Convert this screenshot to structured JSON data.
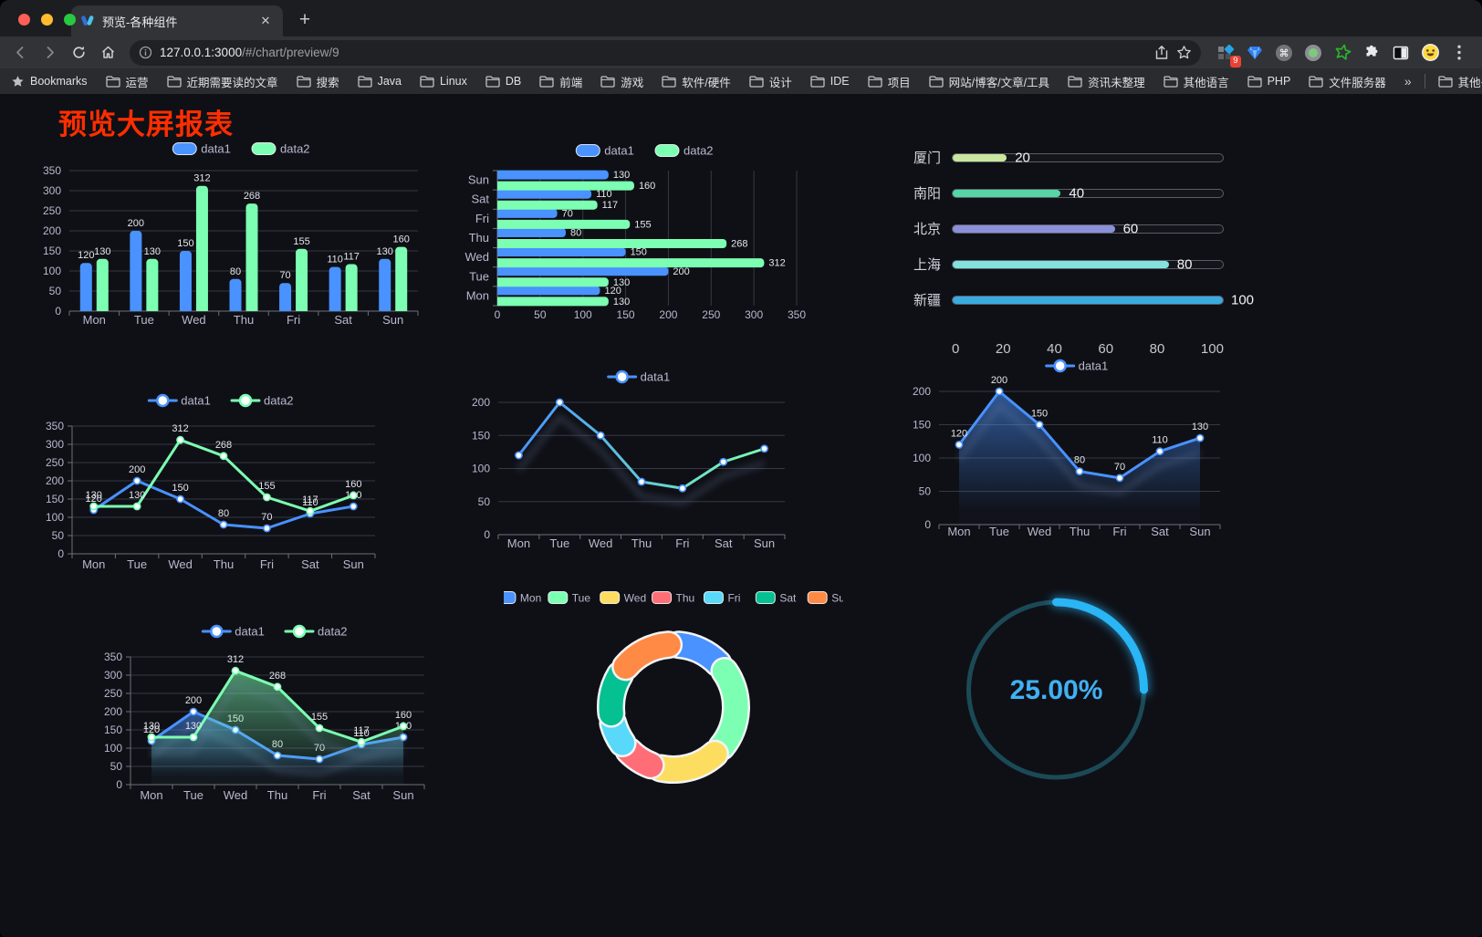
{
  "browser": {
    "tab_title": "预览-各种组件",
    "url_host": "127.0.0.1:3000",
    "url_path": "/#/chart/preview/9",
    "bookmarks_label": "Bookmarks",
    "bookmarks": [
      "运营",
      "近期需要读的文章",
      "搜索",
      "Java",
      "Linux",
      "DB",
      "前端",
      "游戏",
      "软件/硬件",
      "设计",
      "IDE",
      "项目",
      "网站/博客/文章/工具",
      "资讯未整理",
      "其他语言",
      "PHP",
      "文件服务器"
    ],
    "overflow_chevron": "»",
    "other_bookmarks": "其他书签",
    "extension_badge": "9",
    "new_tab_glyph": "+",
    "close_glyph": "✕"
  },
  "page": {
    "title": "预览大屏报表",
    "title_color": "#ff2e00"
  },
  "palette": {
    "data1": "#4992ff",
    "data2": "#7cffb2",
    "axis_label": "#b9b8ce",
    "grid": "#363744",
    "axis_line": "#6e7079",
    "value_label": "#e4e6ea"
  },
  "chart_data": [
    {
      "id": "bar-grouped",
      "type": "bar",
      "categories": [
        "Mon",
        "Tue",
        "Wed",
        "Thu",
        "Fri",
        "Sat",
        "Sun"
      ],
      "series": [
        {
          "name": "data1",
          "color": "#4992ff",
          "values": [
            120,
            200,
            150,
            80,
            70,
            110,
            130
          ]
        },
        {
          "name": "data2",
          "color": "#7cffb2",
          "values": [
            130,
            130,
            312,
            268,
            155,
            117,
            160
          ]
        }
      ],
      "ylim": [
        0,
        350
      ],
      "ytick": 50,
      "legend_pos": "top",
      "grid": true,
      "value_labels": true
    },
    {
      "id": "hbar-grouped",
      "type": "hbar",
      "categories": [
        "Mon",
        "Tue",
        "Wed",
        "Thu",
        "Fri",
        "Sat",
        "Sun"
      ],
      "series": [
        {
          "name": "data1",
          "color": "#4992ff",
          "values": [
            120,
            200,
            150,
            80,
            70,
            110,
            130
          ]
        },
        {
          "name": "data2",
          "color": "#7cffb2",
          "values": [
            130,
            130,
            312,
            268,
            155,
            117,
            160
          ]
        }
      ],
      "xlim": [
        0,
        350
      ],
      "xtick": 50,
      "legend_pos": "top",
      "grid": true,
      "value_labels": true
    },
    {
      "id": "capsule-progress",
      "type": "capsule",
      "xlim": [
        0,
        100
      ],
      "ticks": [
        0,
        20,
        40,
        60,
        80,
        100
      ],
      "rows": [
        {
          "label": "厦门",
          "value": 20,
          "color": "#c9e79e"
        },
        {
          "label": "南阳",
          "value": 40,
          "color": "#55d6a4"
        },
        {
          "label": "北京",
          "value": 60,
          "color": "#8b90da"
        },
        {
          "label": "上海",
          "value": 80,
          "color": "#83e1de"
        },
        {
          "label": "新疆",
          "value": 100,
          "color": "#39abdf"
        }
      ]
    },
    {
      "id": "line-two",
      "type": "line",
      "categories": [
        "Mon",
        "Tue",
        "Wed",
        "Thu",
        "Fri",
        "Sat",
        "Sun"
      ],
      "series": [
        {
          "name": "data1",
          "color": "#4992ff",
          "values": [
            120,
            200,
            150,
            80,
            70,
            110,
            130
          ]
        },
        {
          "name": "data2",
          "color": "#7cffb2",
          "values": [
            130,
            130,
            312,
            268,
            155,
            117,
            160
          ]
        }
      ],
      "ylim": [
        0,
        350
      ],
      "ytick": 50,
      "legend_pos": "top",
      "grid": true,
      "value_labels": true,
      "y_axis_line": true
    },
    {
      "id": "line-gradient",
      "type": "line",
      "categories": [
        "Mon",
        "Tue",
        "Wed",
        "Thu",
        "Fri",
        "Sat",
        "Sun"
      ],
      "series": [
        {
          "name": "data1",
          "color": "#4992ff",
          "color2": "#7cffb2",
          "values": [
            120,
            200,
            150,
            80,
            70,
            110,
            130
          ],
          "line_gradient": true
        }
      ],
      "ylim": [
        0,
        200
      ],
      "ytick": 50,
      "legend_pos": "top",
      "grid": true,
      "value_labels": false,
      "shadow": true
    },
    {
      "id": "area-one",
      "type": "line",
      "categories": [
        "Mon",
        "Tue",
        "Wed",
        "Thu",
        "Fri",
        "Sat",
        "Sun"
      ],
      "series": [
        {
          "name": "data1",
          "color": "#4992ff",
          "values": [
            120,
            200,
            150,
            80,
            70,
            110,
            130
          ],
          "area": true
        }
      ],
      "ylim": [
        0,
        200
      ],
      "ytick": 50,
      "legend_pos": "top",
      "grid": true,
      "value_labels": true,
      "shadow": true
    },
    {
      "id": "area-two",
      "type": "line",
      "categories": [
        "Mon",
        "Tue",
        "Wed",
        "Thu",
        "Fri",
        "Sat",
        "Sun"
      ],
      "series": [
        {
          "name": "data1",
          "color": "#4992ff",
          "values": [
            120,
            200,
            150,
            80,
            70,
            110,
            130
          ],
          "area": true
        },
        {
          "name": "data2",
          "color": "#7cffb2",
          "values": [
            130,
            130,
            312,
            268,
            155,
            117,
            160
          ],
          "area": true
        }
      ],
      "ylim": [
        0,
        350
      ],
      "ytick": 50,
      "legend_pos": "top",
      "grid": true,
      "value_labels": true,
      "y_axis_line": true,
      "shadow": true
    },
    {
      "id": "donut",
      "type": "pie",
      "legend_pos": "top",
      "categories": [
        "Mon",
        "Tue",
        "Wed",
        "Thu",
        "Fri",
        "Sat",
        "Sun"
      ],
      "values": [
        120,
        200,
        150,
        80,
        70,
        110,
        130
      ],
      "colors": [
        "#4992ff",
        "#7cffb2",
        "#fddd60",
        "#ff6e76",
        "#58d9f9",
        "#05c091",
        "#ff8a45"
      ]
    },
    {
      "id": "gauge",
      "type": "gauge",
      "value": 25,
      "label": "25.00%",
      "color": "#2ab5f5",
      "track_color": "#1b4a57",
      "text_color": "#40b1f5"
    }
  ]
}
